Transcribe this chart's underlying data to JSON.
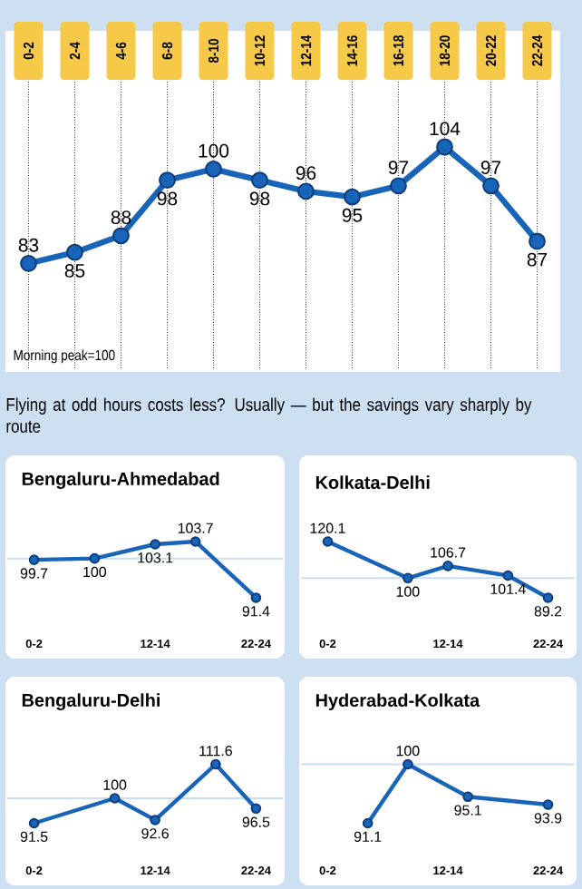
{
  "chart_data": [
    {
      "type": "line",
      "categories": [
        "0-2",
        "2-4",
        "4-6",
        "6-8",
        "8-10",
        "10-12",
        "12-14",
        "14-16",
        "16-18",
        "18-20",
        "20-22",
        "22-24"
      ],
      "values": [
        83,
        85,
        88,
        98,
        100,
        98,
        96,
        95,
        97,
        104,
        97,
        87
      ],
      "color": "#1764b8",
      "marker": "circle",
      "data_labels": true,
      "grid": "x",
      "tick_labels": "x",
      "annotations": [
        "Morning peak=100",
        "Flying at odd hours costs less? Usually — but the savings vary sharply by route"
      ]
    },
    {
      "type": "line",
      "title": "Bengaluru-Ahmedabad",
      "categories": [
        "0-2",
        null,
        null,
        null,
        null,
        null,
        "12-14",
        null,
        null,
        null,
        null,
        "22-24"
      ],
      "values": [
        99.7,
        null,
        null,
        100,
        null,
        null,
        103.1,
        null,
        103.7,
        null,
        null,
        91.4
      ],
      "color": "#1764b8",
      "marker": "circle",
      "data_labels": true,
      "tick_labels": "x",
      "ref_lines": [
        {
          "axis": "y",
          "value": 100,
          "color": "#c8def2"
        }
      ]
    },
    {
      "type": "line",
      "title": "Kolkata-Delhi",
      "categories": [
        "0-2",
        null,
        null,
        null,
        null,
        null,
        "12-14",
        null,
        null,
        null,
        null,
        "22-24"
      ],
      "values": [
        120.1,
        null,
        null,
        null,
        100,
        null,
        106.7,
        null,
        null,
        101.4,
        null,
        89.2
      ],
      "color": "#1764b8",
      "marker": "circle",
      "data_labels": true,
      "tick_labels": "x",
      "ref_lines": [
        {
          "axis": "y",
          "value": 100,
          "color": "#c8def2"
        }
      ]
    },
    {
      "type": "line",
      "title": "Bengaluru-Delhi",
      "categories": [
        "0-2",
        null,
        null,
        null,
        null,
        null,
        "12-14",
        null,
        null,
        null,
        null,
        "22-24"
      ],
      "values": [
        91.5,
        null,
        null,
        null,
        100,
        null,
        92.6,
        null,
        null,
        111.6,
        null,
        96.5
      ],
      "color": "#1764b8",
      "marker": "circle",
      "data_labels": true,
      "tick_labels": "x",
      "ref_lines": [
        {
          "axis": "y",
          "value": 100,
          "color": "#c8def2"
        }
      ]
    },
    {
      "type": "line",
      "title": "Hyderabad-Kolkata",
      "categories": [
        "0-2",
        null,
        null,
        null,
        null,
        null,
        "12-14",
        null,
        null,
        null,
        null,
        "22-24"
      ],
      "values": [
        null,
        null,
        91.1,
        null,
        100,
        null,
        null,
        95.1,
        null,
        null,
        null,
        93.9
      ],
      "color": "#1764b8",
      "marker": "circle",
      "data_labels": true,
      "tick_labels": "x",
      "ref_lines": [
        {
          "axis": "y",
          "value": 100,
          "color": "#c8def2"
        }
      ]
    }
  ]
}
